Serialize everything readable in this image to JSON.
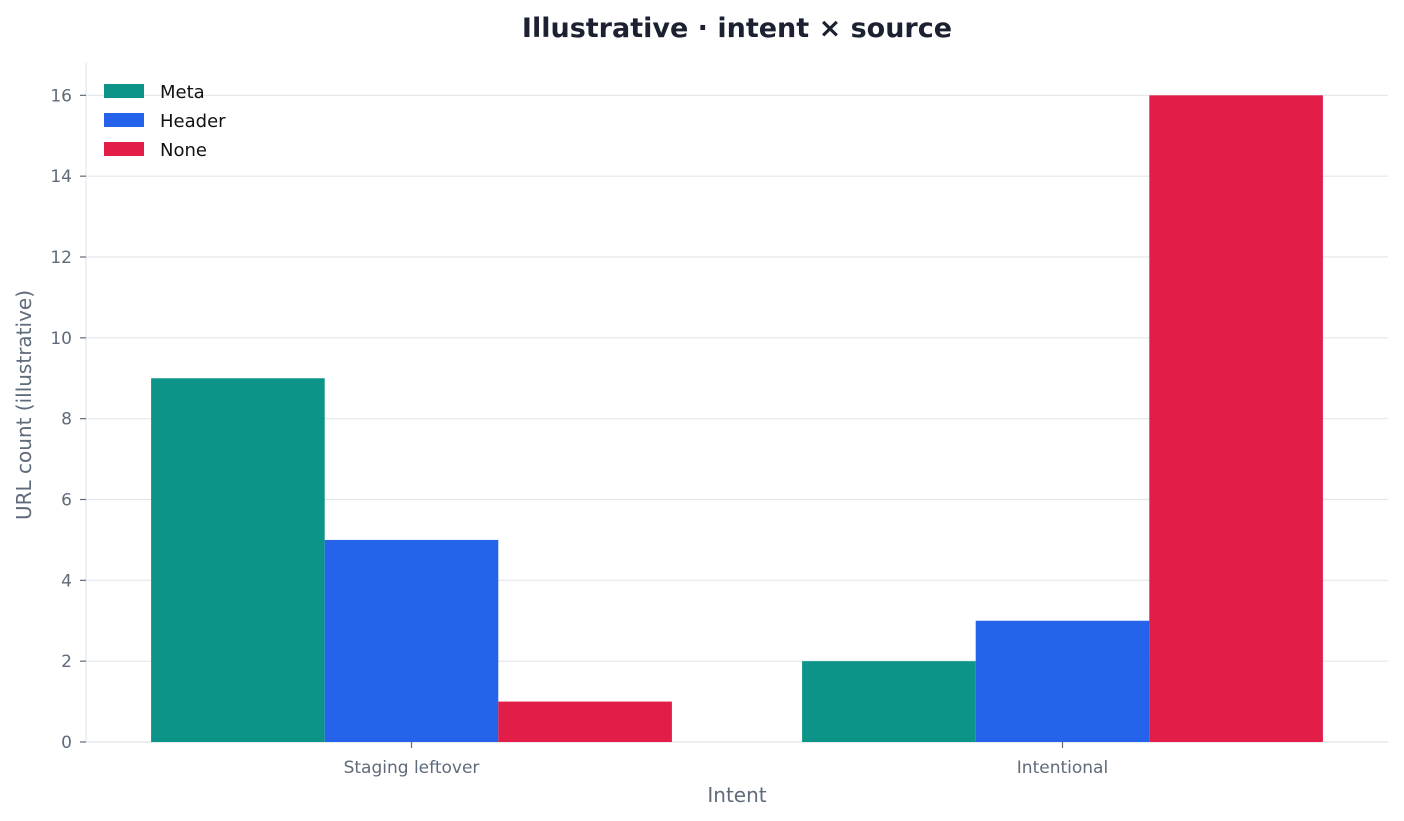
{
  "chart_data": {
    "type": "bar",
    "title": "Illustrative · intent × source",
    "xlabel": "Intent",
    "ylabel": "URL count (illustrative)",
    "categories": [
      "Staging leftover",
      "Intentional"
    ],
    "series": [
      {
        "name": "Meta",
        "values": [
          9,
          2
        ],
        "color": "#0d9488"
      },
      {
        "name": "Header",
        "values": [
          5,
          3
        ],
        "color": "#2563eb"
      },
      {
        "name": "None",
        "values": [
          1,
          16
        ],
        "color": "#e11d48"
      }
    ],
    "ylim": [
      0,
      16.8
    ],
    "yticks": [
      0,
      2,
      4,
      6,
      8,
      10,
      12,
      14,
      16
    ],
    "grid": true,
    "legend_position": "top-left"
  }
}
